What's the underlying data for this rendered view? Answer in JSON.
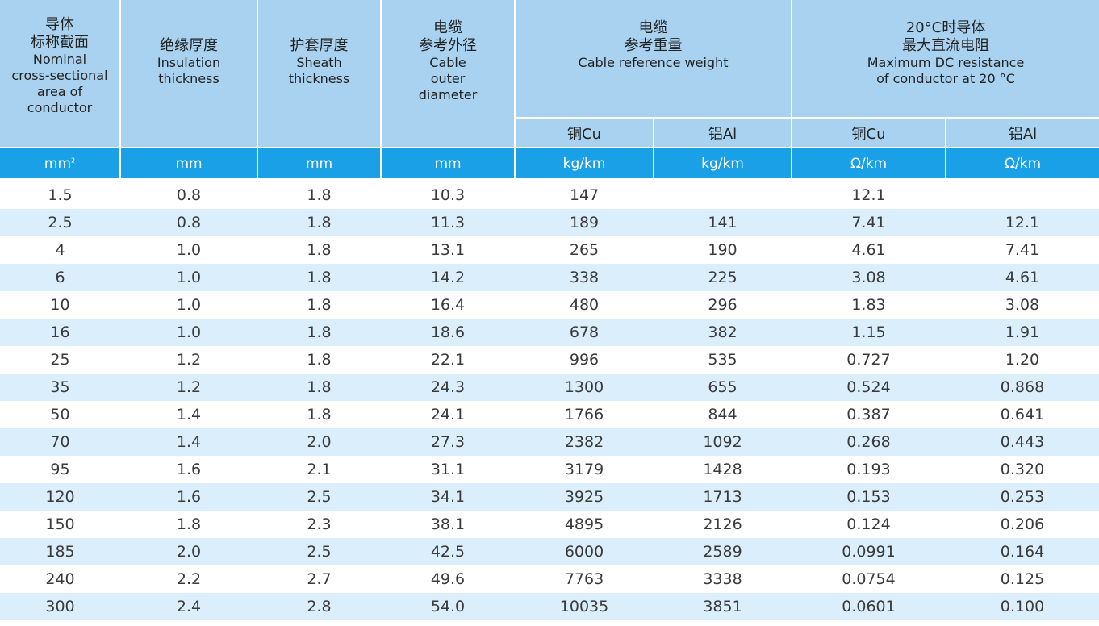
{
  "headers": {
    "size": {
      "cn1": "导体",
      "cn2": "标称截面",
      "en": [
        "Nominal",
        "cross-sectional",
        "area of",
        "conductor"
      ]
    },
    "insulation": {
      "cn": "绝缘厚度",
      "en": [
        "Insulation",
        "thickness"
      ]
    },
    "sheath": {
      "cn": "护套厚度",
      "en": [
        "Sheath",
        "thickness"
      ]
    },
    "diameter": {
      "cn1": "电缆",
      "cn2": "参考外径",
      "en": [
        "Cable",
        "outer",
        "diameter"
      ]
    },
    "weight": {
      "cn1": "电缆",
      "cn2": "参考重量",
      "en": "Cable reference weight"
    },
    "resistance": {
      "cn1": "20°C时导体",
      "cn2": "最大直流电阻",
      "en": [
        "Maximum DC resistance",
        "of conductor at 20 °C"
      ]
    },
    "sub": [
      "铜Cu",
      "铝Al",
      "铜Cu",
      "铝Al"
    ]
  },
  "units": {
    "size": "mm",
    "size_sup": "2",
    "insulation": "mm",
    "sheath": "mm",
    "diameter": "mm",
    "weight_cu": "kg/km",
    "weight_al": "kg/km",
    "res_cu": "Ω/km",
    "res_al": "Ω/km"
  },
  "rows": [
    [
      "1.5",
      "0.8",
      "1.8",
      "10.3",
      "147",
      "",
      "12.1",
      ""
    ],
    [
      "2.5",
      "0.8",
      "1.8",
      "11.3",
      "189",
      "141",
      "7.41",
      "12.1"
    ],
    [
      "4",
      "1.0",
      "1.8",
      "13.1",
      "265",
      "190",
      "4.61",
      "7.41"
    ],
    [
      "6",
      "1.0",
      "1.8",
      "14.2",
      "338",
      "225",
      "3.08",
      "4.61"
    ],
    [
      "10",
      "1.0",
      "1.8",
      "16.4",
      "480",
      "296",
      "1.83",
      "3.08"
    ],
    [
      "16",
      "1.0",
      "1.8",
      "18.6",
      "678",
      "382",
      "1.15",
      "1.91"
    ],
    [
      "25",
      "1.2",
      "1.8",
      "22.1",
      "996",
      "535",
      "0.727",
      "1.20"
    ],
    [
      "35",
      "1.2",
      "1.8",
      "24.3",
      "1300",
      "655",
      "0.524",
      "0.868"
    ],
    [
      "50",
      "1.4",
      "1.8",
      "24.1",
      "1766",
      "844",
      "0.387",
      "0.641"
    ],
    [
      "70",
      "1.4",
      "2.0",
      "27.3",
      "2382",
      "1092",
      "0.268",
      "0.443"
    ],
    [
      "95",
      "1.6",
      "2.1",
      "31.1",
      "3179",
      "1428",
      "0.193",
      "0.320"
    ],
    [
      "120",
      "1.6",
      "2.5",
      "34.1",
      "3925",
      "1713",
      "0.153",
      "0.253"
    ],
    [
      "150",
      "1.8",
      "2.3",
      "38.1",
      "4895",
      "2126",
      "0.124",
      "0.206"
    ],
    [
      "185",
      "2.0",
      "2.5",
      "42.5",
      "6000",
      "2589",
      "0.0991",
      "0.164"
    ],
    [
      "240",
      "2.2",
      "2.7",
      "49.6",
      "7763",
      "3338",
      "0.0754",
      "0.125"
    ],
    [
      "300",
      "2.4",
      "2.8",
      "54.0",
      "10035",
      "3851",
      "0.0601",
      "0.100"
    ]
  ],
  "colors": {
    "header_bg": "#a8d2ef",
    "units_bg": "#1aa0e6",
    "stripe_bg": "#daeefb"
  }
}
